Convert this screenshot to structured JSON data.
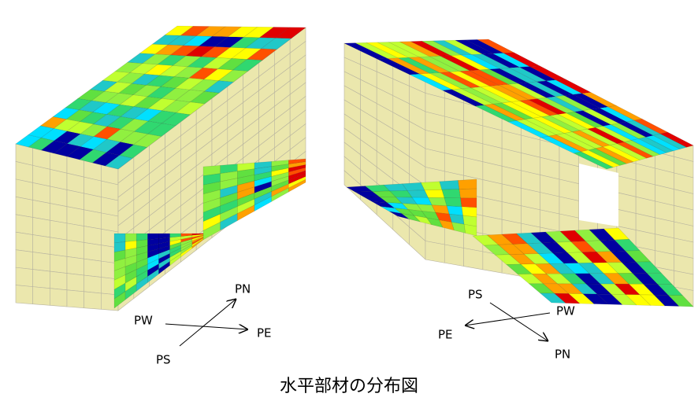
{
  "views": [
    {
      "PN": "PN",
      "PW": "PW",
      "PE": "PE",
      "PS": "PS"
    },
    {
      "PN": "PN",
      "PW": "PW",
      "PE": "PE",
      "PS": "PS"
    }
  ],
  "caption": "水平部材の分布図"
}
